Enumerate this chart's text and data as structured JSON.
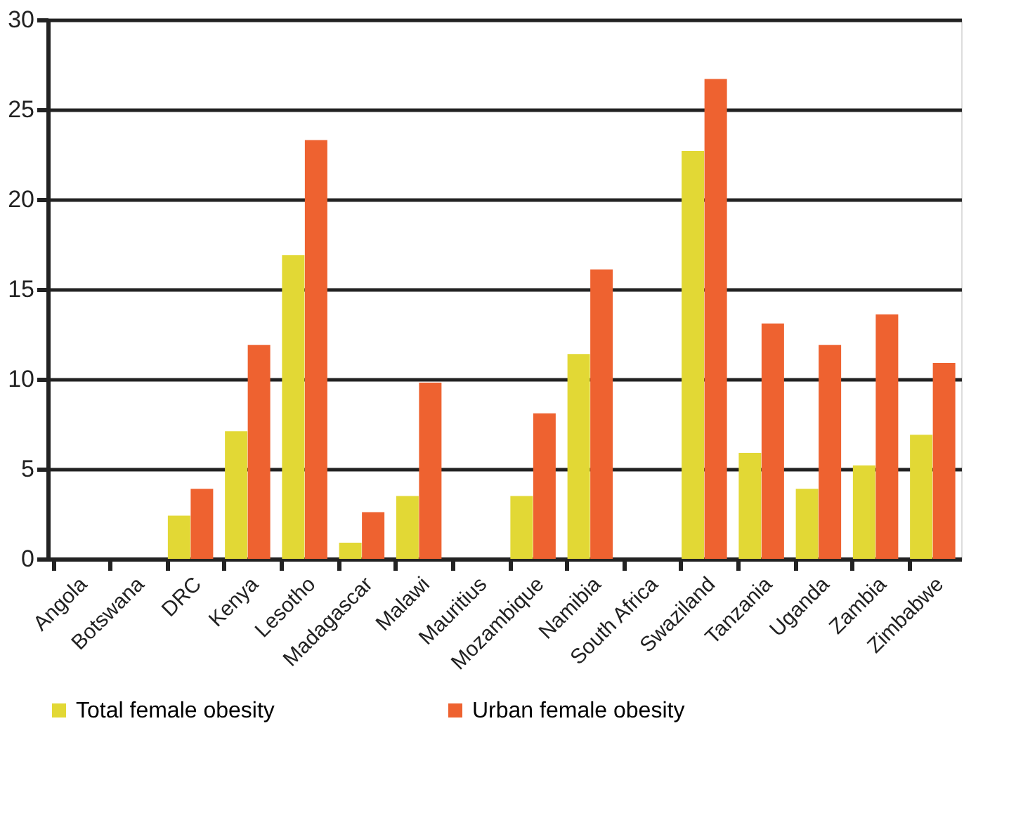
{
  "chart_data": {
    "type": "bar",
    "categories": [
      "Angola",
      "Botswana",
      "DRC",
      "Kenya",
      "Lesotho",
      "Madagascar",
      "Malawi",
      "Mauritius",
      "Mozambique",
      "Namibia",
      "South Africa",
      "Swaziland",
      "Tanzania",
      "Uganda",
      "Zambia",
      "Zimbabwe"
    ],
    "series": [
      {
        "name": "Total female obesity",
        "color": "#e2d835",
        "values": [
          null,
          null,
          2.4,
          7.1,
          16.9,
          0.9,
          3.5,
          null,
          3.5,
          11.4,
          null,
          22.7,
          5.9,
          3.9,
          5.2,
          6.9
        ]
      },
      {
        "name": "Urban female obesity",
        "color": "#ee6230",
        "values": [
          null,
          null,
          3.9,
          11.9,
          23.3,
          2.6,
          9.8,
          null,
          8.1,
          16.1,
          null,
          26.7,
          13.1,
          11.9,
          13.6,
          10.9
        ]
      }
    ],
    "ylim": [
      0,
      30
    ],
    "yticks": [
      0,
      5,
      10,
      15,
      20,
      25,
      30
    ],
    "grid": "y",
    "legend": "bottom"
  }
}
